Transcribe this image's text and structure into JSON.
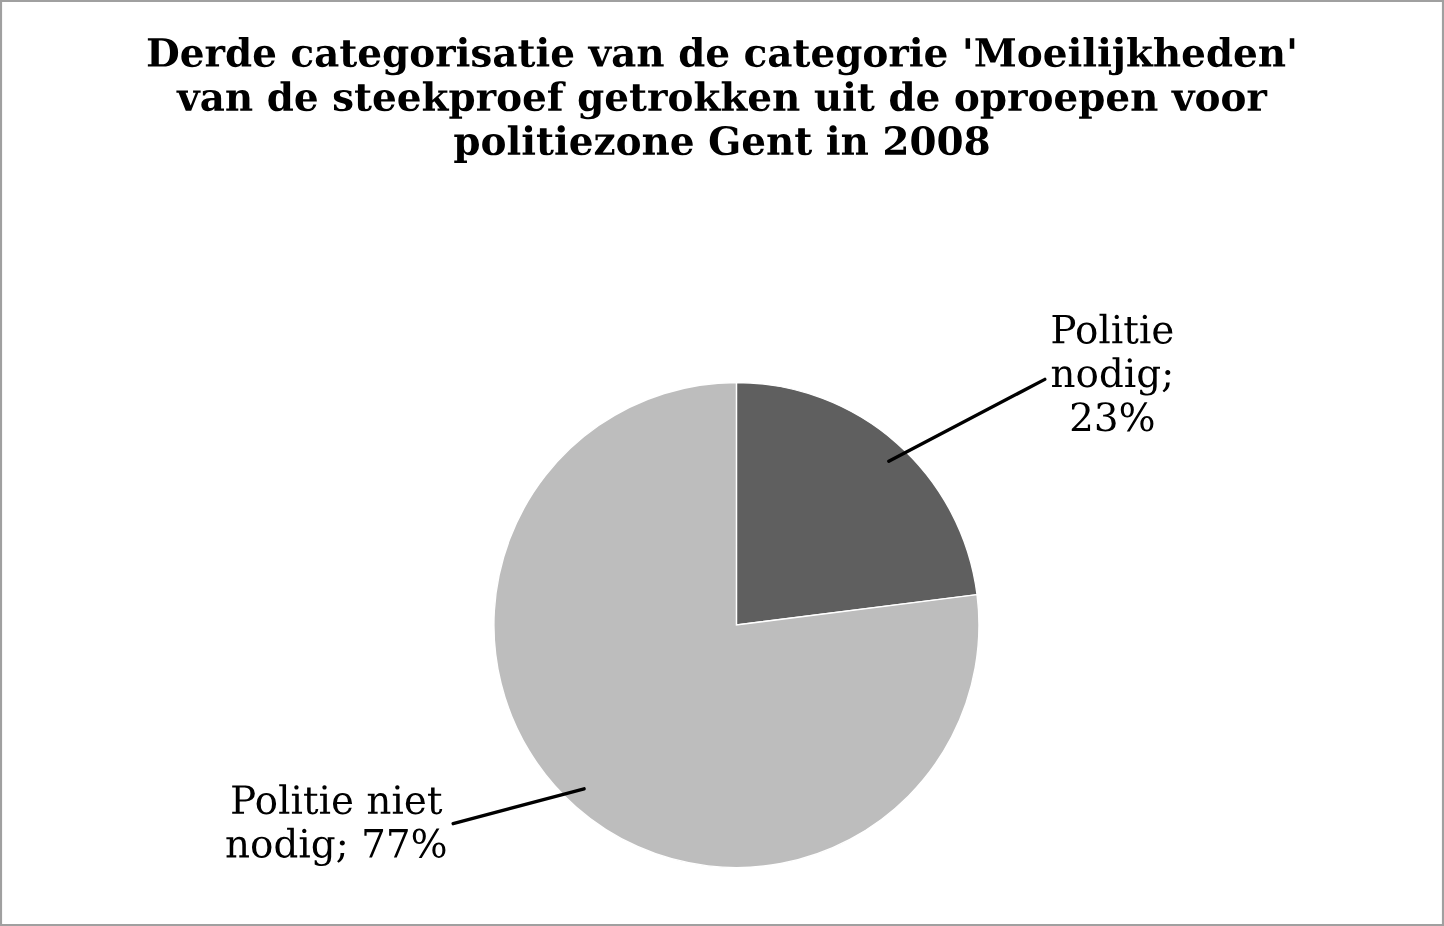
{
  "chart_data": {
    "type": "pie",
    "title": "Derde categorisatie van de categorie 'Moeilijkheden' van de steekproef getrokken uit de oproepen voor politiezone Gent in 2008",
    "categories": [
      null,
      null
    ],
    "values": [
      23,
      77
    ],
    "value_labels": [
      "Politie nodig; 23%",
      "Politie niet nodig; 77%"
    ],
    "colors": [
      "#5f5f5f",
      "#bdbdbd"
    ],
    "legend": false
  }
}
